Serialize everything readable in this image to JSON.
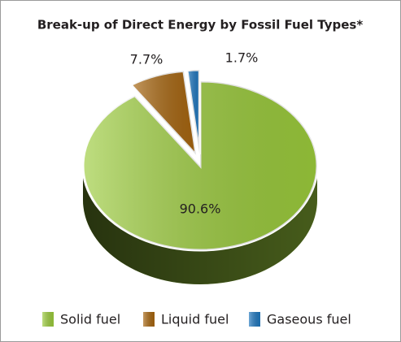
{
  "chart_data": {
    "type": "pie",
    "title": "Break-up of Direct Energy by Fossil Fuel Types*",
    "categories": [
      "Solid fuel",
      "Liquid fuel",
      "Gaseous fuel"
    ],
    "values": [
      90.6,
      7.7,
      1.7
    ],
    "value_labels": [
      "90.6%",
      "7.7%",
      "1.7%"
    ],
    "colors": [
      "#9ccc3c",
      "#a8660f",
      "#1f78c0"
    ]
  }
}
